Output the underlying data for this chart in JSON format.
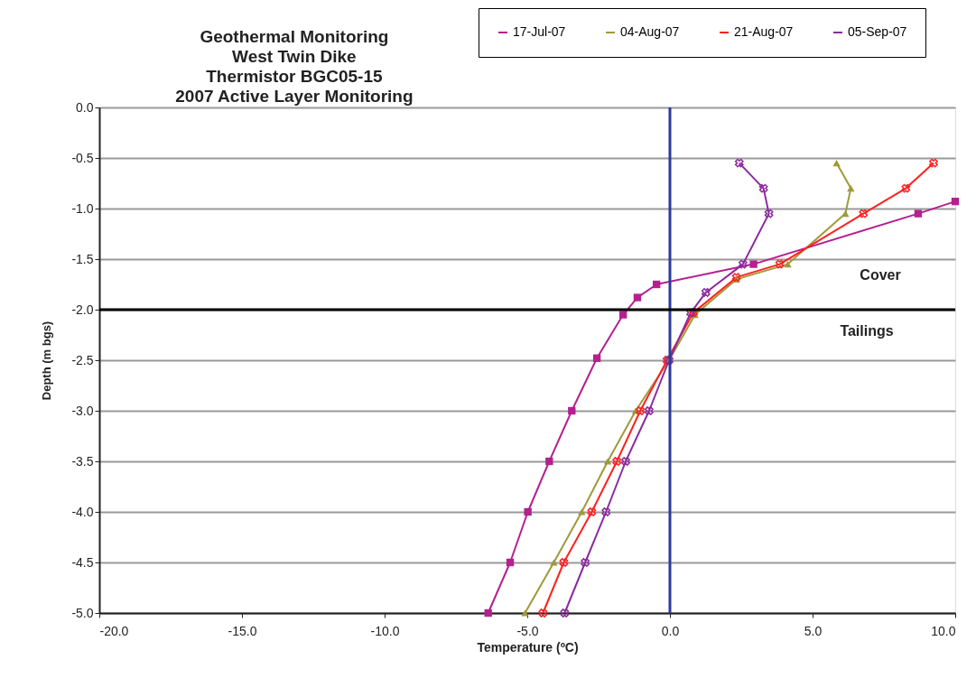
{
  "chart_data": {
    "type": "line",
    "title": "Geothermal Monitoring\nWest Twin Dike\nThermistor BGC05-15\n2007 Active Layer Monitoring",
    "xlabel": "Temperature (ºC)",
    "ylabel": "Depth (m bgs)",
    "series": [
      {
        "name": "17-Jul-07",
        "color": "#b5208f",
        "marker": "square",
        "x": [
          10.0,
          8.7,
          2.93,
          -0.47,
          -1.14,
          -1.64,
          -2.56,
          -3.44,
          -4.23,
          -4.98,
          -5.6,
          -6.37
        ],
        "values": [
          -0.93,
          -1.05,
          -1.55,
          -1.75,
          -1.88,
          -2.05,
          -2.48,
          -3.0,
          -3.5,
          -4.0,
          -4.5,
          -5.0
        ]
      },
      {
        "name": "04-Aug-07",
        "color": "#9e9a3a",
        "marker": "triangle",
        "x": [
          5.84,
          6.34,
          6.15,
          4.13,
          2.33,
          0.88,
          -0.03,
          -1.2,
          -2.18,
          -3.09,
          -4.07,
          -5.08
        ],
        "values": [
          -0.55,
          -0.8,
          -1.05,
          -1.55,
          -1.7,
          -2.05,
          -2.5,
          -3.0,
          -3.5,
          -4.0,
          -4.5,
          -5.0
        ]
      },
      {
        "name": "21-Aug-07",
        "color": "#ff2020",
        "marker": "cross",
        "x": [
          9.24,
          8.27,
          6.78,
          3.85,
          2.33,
          0.82,
          -0.1,
          -1.04,
          -1.86,
          -2.74,
          -3.72,
          -4.45
        ],
        "values": [
          -0.55,
          -0.8,
          -1.05,
          -1.55,
          -1.68,
          -2.03,
          -2.5,
          -3.0,
          -3.5,
          -4.0,
          -4.5,
          -5.0
        ]
      },
      {
        "name": "05-Sep-07",
        "color": "#8b2a9e",
        "marker": "cross",
        "x": [
          2.43,
          3.28,
          3.47,
          2.56,
          1.26,
          0.73,
          -0.03,
          -0.73,
          -1.55,
          -2.24,
          -2.97,
          -3.69
        ],
        "values": [
          -0.55,
          -0.8,
          -1.05,
          -1.55,
          -1.83,
          -2.03,
          -2.5,
          -3.0,
          -3.5,
          -4.0,
          -4.5,
          -5.0
        ]
      }
    ],
    "xlim": [
      -20,
      10
    ],
    "ylim": [
      -5,
      0
    ],
    "xticks": [
      {
        "value": -20,
        "label": "-20.0"
      },
      {
        "value": -15,
        "label": "-15.0"
      },
      {
        "value": -10,
        "label": "-10.0"
      },
      {
        "value": -5,
        "label": "-5.0"
      },
      {
        "value": 0,
        "label": "0.0"
      },
      {
        "value": 5,
        "label": "5.0"
      },
      {
        "value": 10,
        "label": "10.0"
      }
    ],
    "yticks": [
      {
        "value": 0,
        "label": "0.0"
      },
      {
        "value": -0.5,
        "label": "-0.5"
      },
      {
        "value": -1,
        "label": "-1.0"
      },
      {
        "value": -1.5,
        "label": "-1.5"
      },
      {
        "value": -2,
        "label": "-2.0"
      },
      {
        "value": -2.5,
        "label": "-2.5"
      },
      {
        "value": -3,
        "label": "-3.0"
      },
      {
        "value": -3.5,
        "label": "-3.5"
      },
      {
        "value": -4,
        "label": "-4.0"
      },
      {
        "value": -4.5,
        "label": "-4.5"
      },
      {
        "value": -5,
        "label": "-5.0"
      }
    ],
    "ref_lines": [
      {
        "axis": "x",
        "value": 0,
        "color": "#2b3a9e"
      },
      {
        "axis": "y",
        "value": -2,
        "color": "#000000"
      }
    ],
    "annotations": [
      "Cover",
      "Tailings"
    ],
    "grid": "y",
    "legend": "top",
    "line_style": "solid"
  }
}
